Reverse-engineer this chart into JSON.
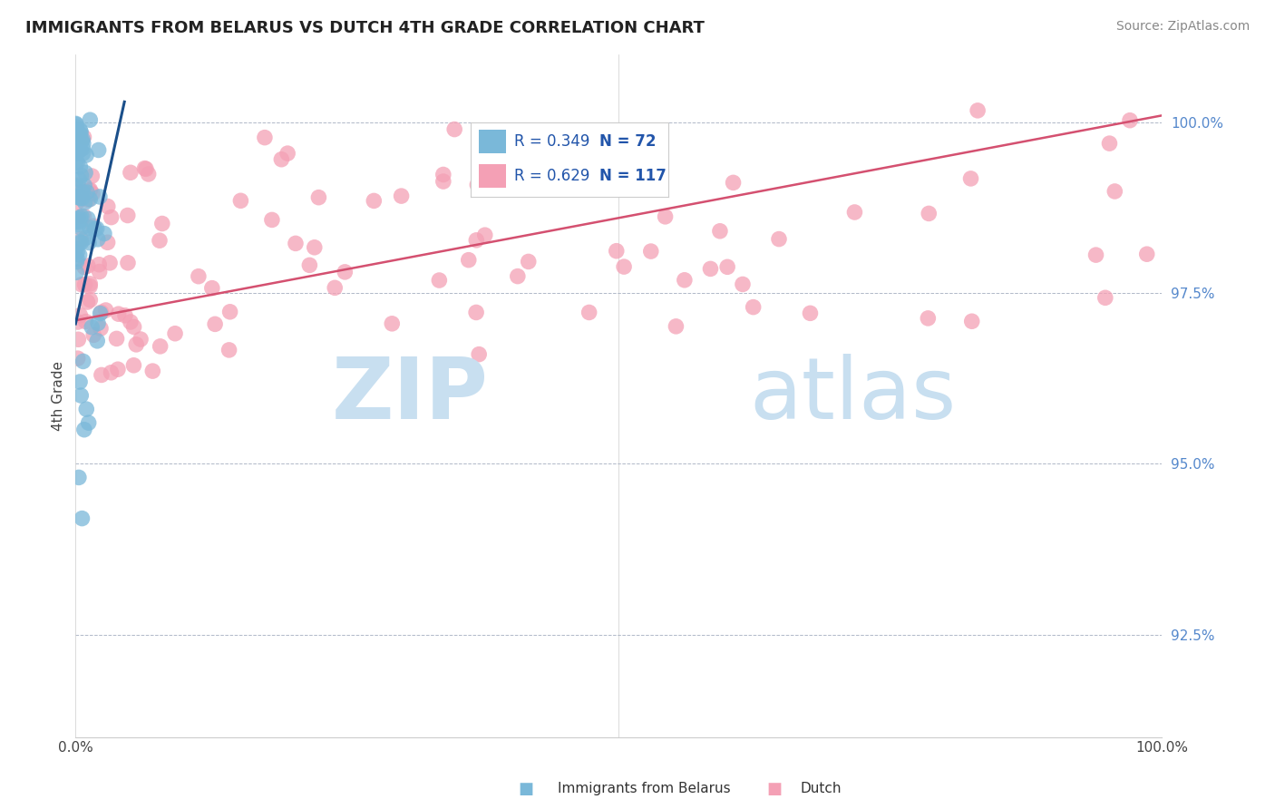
{
  "title": "IMMIGRANTS FROM BELARUS VS DUTCH 4TH GRADE CORRELATION CHART",
  "source_text": "Source: ZipAtlas.com",
  "ylabel": "4th Grade",
  "ytick_labels": [
    "92.5%",
    "95.0%",
    "97.5%",
    "100.0%"
  ],
  "ytick_values": [
    0.925,
    0.95,
    0.975,
    1.0
  ],
  "xrange": [
    0.0,
    1.0
  ],
  "yrange": [
    0.91,
    1.01
  ],
  "legend_label_blue": "Immigrants from Belarus",
  "legend_label_pink": "Dutch",
  "blue_color": "#7ab8d9",
  "pink_color": "#f4a0b5",
  "blue_line_color": "#1a4f8a",
  "pink_line_color": "#d45070",
  "watermark_zip_color": "#c8dff0",
  "watermark_atlas_color": "#c8dff0",
  "dot_size": 160,
  "dot_alpha": 0.75
}
